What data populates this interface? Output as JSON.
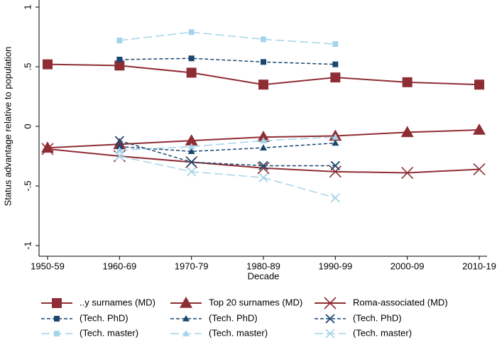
{
  "chart_data": {
    "type": "line",
    "xlabel": "Decade",
    "ylabel": "Status advantage relative to population",
    "categories": [
      "1950-59",
      "1960-69",
      "1970-79",
      "1980-89",
      "1990-99",
      "2000-09",
      "2010-19"
    ],
    "ylim": [
      -1,
      1
    ],
    "yticks": [
      1,
      {
        "value": 0.5,
        "label": ".5"
      },
      0,
      {
        "value": -0.5,
        "label": "-.5"
      },
      -1
    ],
    "series": [
      {
        "name": "..y surnames (MD)",
        "color": "#8f2d35",
        "marker": "square",
        "line_style": "solid",
        "values": [
          0.52,
          0.51,
          0.45,
          0.35,
          0.41,
          0.37,
          0.35
        ]
      },
      {
        "name": "(Tech. PhD)",
        "color": "#1a476f",
        "marker": "square",
        "line_style": "dash",
        "values": [
          null,
          0.56,
          0.57,
          0.54,
          0.52,
          null,
          null
        ]
      },
      {
        "name": "(Tech. master)",
        "color": "#a6d4ea",
        "marker": "square",
        "line_style": "longdash",
        "values": [
          null,
          0.72,
          0.79,
          0.73,
          0.69,
          null,
          null
        ]
      },
      {
        "name": "Top 20 surnames (MD)",
        "color": "#8f2d35",
        "marker": "triangle",
        "line_style": "solid",
        "values": [
          -0.18,
          -0.15,
          -0.12,
          -0.09,
          -0.08,
          -0.05,
          -0.03
        ]
      },
      {
        "name": "(Tech. PhD)",
        "color": "#1a476f",
        "marker": "triangle",
        "line_style": "dash",
        "values": [
          null,
          -0.17,
          -0.21,
          -0.18,
          -0.14,
          null,
          null
        ]
      },
      {
        "name": "(Tech. master)",
        "color": "#a6d4ea",
        "marker": "triangle",
        "line_style": "longdash",
        "values": [
          null,
          -0.2,
          -0.17,
          -0.12,
          -0.09,
          null,
          null
        ]
      },
      {
        "name": "Roma-associated (MD)",
        "color": "#8f2d35",
        "marker": "x",
        "line_style": "solid",
        "values": [
          -0.19,
          -0.25,
          -0.3,
          -0.35,
          -0.38,
          -0.39,
          -0.36
        ]
      },
      {
        "name": "(Tech. PhD)",
        "color": "#1a476f",
        "marker": "x",
        "line_style": "dash",
        "values": [
          null,
          -0.12,
          -0.3,
          -0.33,
          -0.33,
          null,
          null
        ]
      },
      {
        "name": "(Tech. master)",
        "color": "#a6d4ea",
        "marker": "x",
        "line_style": "longdash",
        "values": [
          null,
          -0.25,
          -0.38,
          -0.43,
          -0.6,
          null,
          null
        ]
      }
    ]
  }
}
